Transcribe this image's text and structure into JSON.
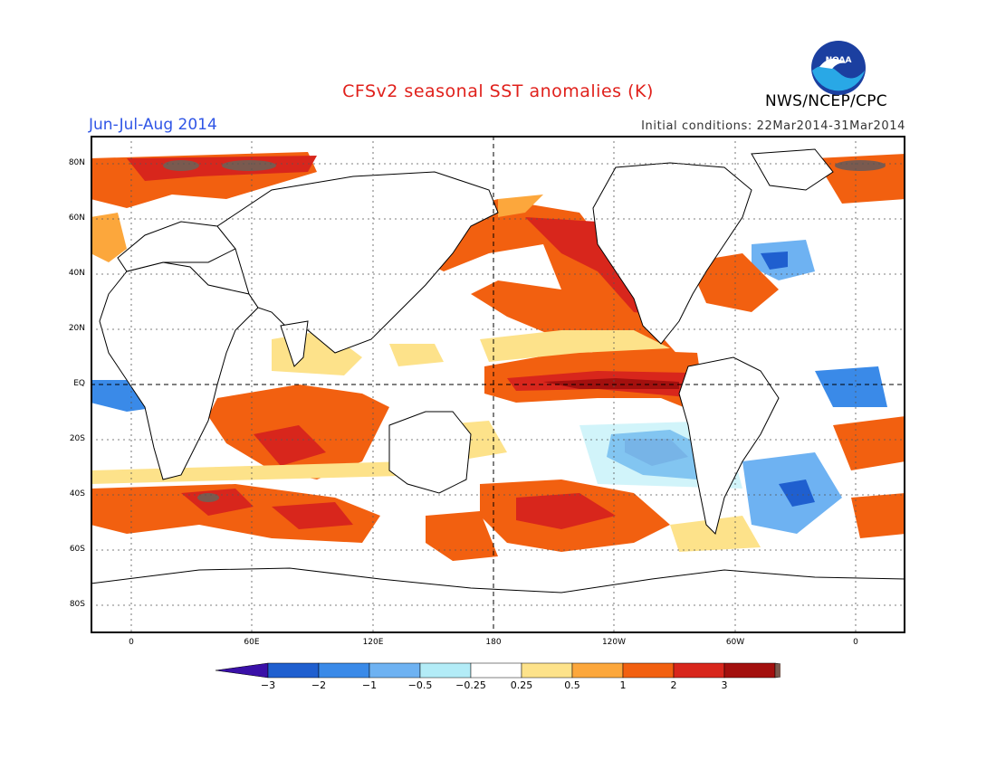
{
  "title": "CFSv2 seasonal SST anomalies (K)",
  "season": "Jun-Jul-Aug 2014",
  "initial_conditions": "Initial conditions: 22Mar2014-31Mar2014",
  "agency": "NWS/NCEP/CPC",
  "logo_text": "NOAA",
  "map": {
    "lat_labels": [
      "80N",
      "60N",
      "40N",
      "20N",
      "EQ",
      "20S",
      "40S",
      "60S",
      "80S"
    ],
    "lon_labels": [
      "0",
      "60E",
      "120E",
      "180",
      "120W",
      "60W",
      "0"
    ]
  },
  "colorbar": {
    "labels": [
      "-3",
      "-2",
      "-1",
      "-0.5",
      "-0.25",
      "0.25",
      "0.5",
      "1",
      "2",
      "3"
    ],
    "colors": [
      "#3a10a8",
      "#1f5fcf",
      "#3a8ae8",
      "#6eb2f2",
      "#b3ecf7",
      "#ffffff",
      "#fde28a",
      "#fca73c",
      "#f26010",
      "#d8261c",
      "#a3100e",
      "#7a5a4f"
    ]
  }
}
